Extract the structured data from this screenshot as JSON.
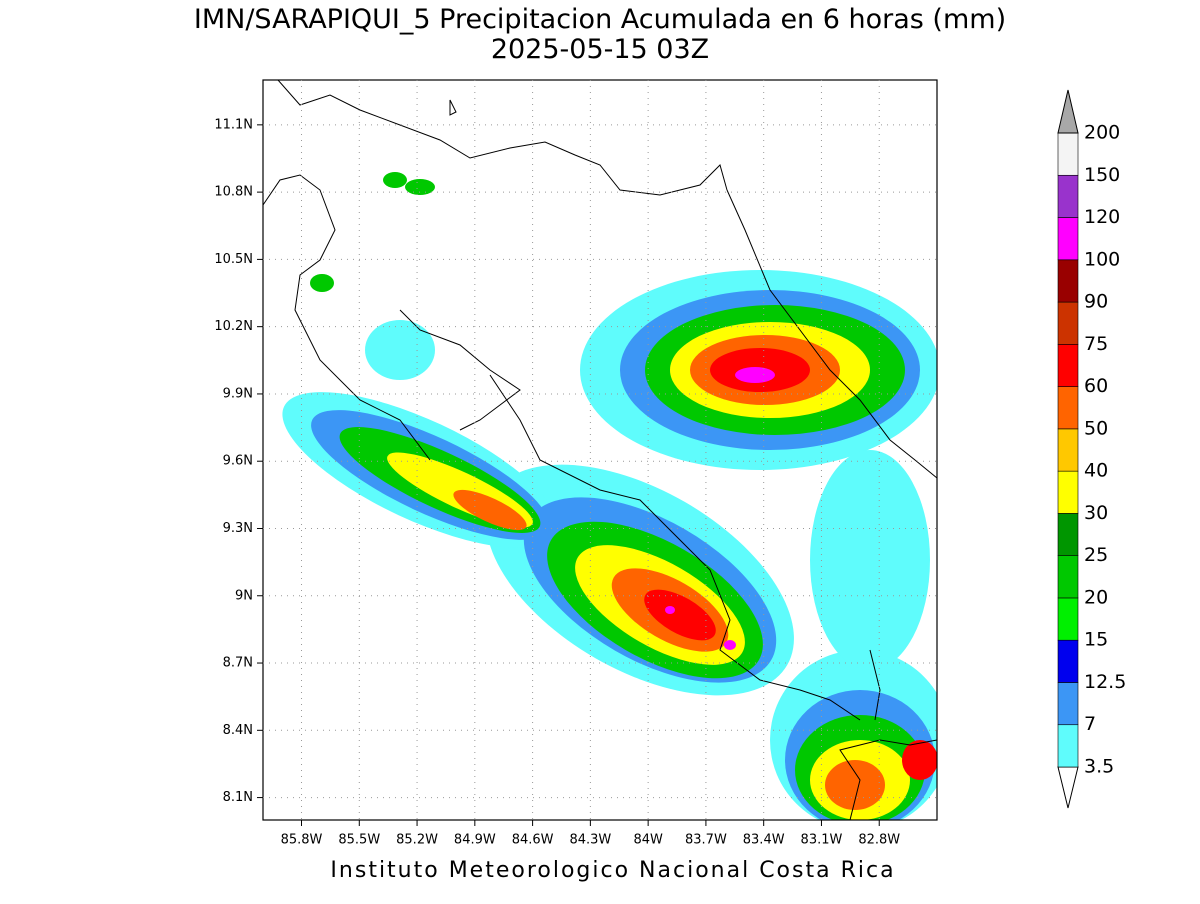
{
  "map": {
    "title": "IMN/SARAPIQUI_5 Precipitacion Acumulada en 6 horas (mm)",
    "subtitle": "2025-05-15 03Z",
    "footer": "Instituto Meteorologico Nacional Costa Rica",
    "xlim": [
      -86.0,
      -82.5
    ],
    "ylim": [
      8.0,
      11.3
    ],
    "xticks": [
      {
        "value": -85.8,
        "label": "85.8W"
      },
      {
        "value": -85.5,
        "label": "85.5W"
      },
      {
        "value": -85.2,
        "label": "85.2W"
      },
      {
        "value": -84.9,
        "label": "84.9W"
      },
      {
        "value": -84.6,
        "label": "84.6W"
      },
      {
        "value": -84.3,
        "label": "84.3W"
      },
      {
        "value": -84.0,
        "label": "84W"
      },
      {
        "value": -83.7,
        "label": "83.7W"
      },
      {
        "value": -83.4,
        "label": "83.4W"
      },
      {
        "value": -83.1,
        "label": "83.1W"
      },
      {
        "value": -82.8,
        "label": "82.8W"
      }
    ],
    "yticks": [
      {
        "value": 11.1,
        "label": "11.1N"
      },
      {
        "value": 10.8,
        "label": "10.8N"
      },
      {
        "value": 10.5,
        "label": "10.5N"
      },
      {
        "value": 10.2,
        "label": "10.2N"
      },
      {
        "value": 9.9,
        "label": "9.9N"
      },
      {
        "value": 9.6,
        "label": "9.6N"
      },
      {
        "value": 9.3,
        "label": "9.3N"
      },
      {
        "value": 9.0,
        "label": "9N"
      },
      {
        "value": 8.7,
        "label": "8.7N"
      },
      {
        "value": 8.4,
        "label": "8.4N"
      },
      {
        "value": 8.1,
        "label": "8.1N"
      }
    ],
    "grid": true
  },
  "colorbar": {
    "levels": [
      3.5,
      7,
      12.5,
      15,
      20,
      25,
      30,
      40,
      50,
      60,
      75,
      90,
      100,
      120,
      150,
      200
    ],
    "colors": [
      "#ffffff",
      "#5ffcfc",
      "#3c96f5",
      "#0000ee",
      "#00f000",
      "#00c800",
      "#009600",
      "#ffff00",
      "#ffc800",
      "#ff6400",
      "#ff0000",
      "#cc3300",
      "#990000",
      "#ff00ff",
      "#9933cc",
      "#f4f4f4",
      "#a8a8a8"
    ]
  }
}
